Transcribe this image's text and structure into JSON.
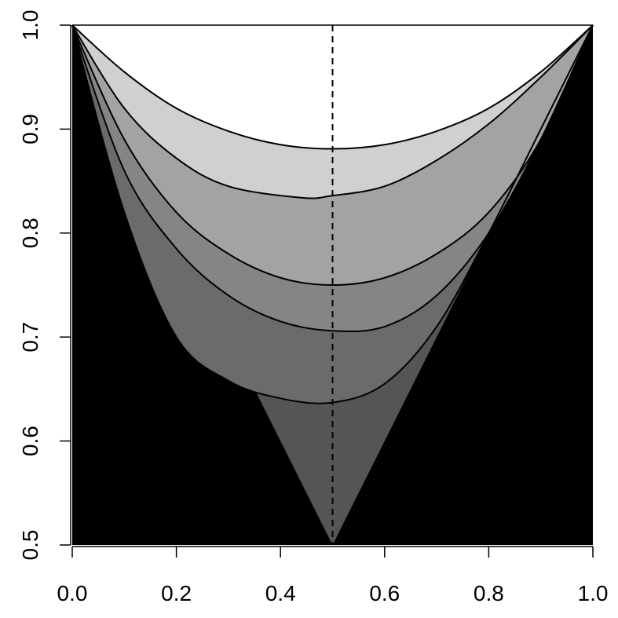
{
  "chart_data": {
    "type": "area",
    "title": "",
    "xlabel": "",
    "ylabel": "",
    "xlim": [
      0,
      1
    ],
    "ylim": [
      0.5,
      1.0
    ],
    "x_ticks": [
      "0.0",
      "0.2",
      "0.4",
      "0.6",
      "0.8",
      "1.0"
    ],
    "y_ticks": [
      "0.5",
      "0.6",
      "0.7",
      "0.8",
      "0.9",
      "1.0"
    ],
    "grid": false,
    "reference_line": {
      "x": 0.5,
      "style": "dashed"
    },
    "background_fill": "#000000",
    "boundaries": [
      {
        "description": "lower bound V",
        "points": [
          [
            0.0,
            1.0
          ],
          [
            0.5,
            0.5
          ],
          [
            1.0,
            1.0
          ]
        ]
      },
      {
        "minimum": [
          0.5,
          0.637
        ],
        "points": [
          [
            0.0,
            1.0
          ],
          [
            0.1,
            0.82
          ],
          [
            0.2,
            0.7
          ],
          [
            0.3,
            0.658
          ],
          [
            0.4,
            0.641
          ],
          [
            0.5,
            0.637
          ],
          [
            0.6,
            0.655
          ],
          [
            0.7,
            0.71
          ],
          [
            0.8,
            0.8
          ],
          [
            0.9,
            0.9
          ],
          [
            1.0,
            1.0
          ]
        ]
      },
      {
        "minimum": [
          0.52,
          0.705
        ],
        "points": [
          [
            0.0,
            1.0
          ],
          [
            0.1,
            0.86
          ],
          [
            0.2,
            0.785
          ],
          [
            0.3,
            0.74
          ],
          [
            0.4,
            0.715
          ],
          [
            0.5,
            0.706
          ],
          [
            0.6,
            0.71
          ],
          [
            0.7,
            0.74
          ],
          [
            0.8,
            0.8
          ],
          [
            0.9,
            0.89
          ],
          [
            1.0,
            1.0
          ]
        ]
      },
      {
        "minimum": [
          0.5,
          0.75
        ],
        "points": [
          [
            0.0,
            1.0
          ],
          [
            0.1,
            0.89
          ],
          [
            0.2,
            0.82
          ],
          [
            0.3,
            0.78
          ],
          [
            0.4,
            0.757
          ],
          [
            0.5,
            0.75
          ],
          [
            0.6,
            0.757
          ],
          [
            0.7,
            0.78
          ],
          [
            0.8,
            0.82
          ],
          [
            0.9,
            0.89
          ],
          [
            1.0,
            1.0
          ]
        ]
      },
      {
        "minimum": [
          0.44,
          0.834
        ],
        "points": [
          [
            0.0,
            1.0
          ],
          [
            0.1,
            0.92
          ],
          [
            0.2,
            0.872
          ],
          [
            0.3,
            0.845
          ],
          [
            0.44,
            0.834
          ],
          [
            0.5,
            0.836
          ],
          [
            0.6,
            0.845
          ],
          [
            0.7,
            0.87
          ],
          [
            0.8,
            0.905
          ],
          [
            0.9,
            0.95
          ],
          [
            1.0,
            1.0
          ]
        ]
      },
      {
        "minimum": [
          0.5,
          0.881
        ],
        "points": [
          [
            0.0,
            1.0
          ],
          [
            0.1,
            0.955
          ],
          [
            0.2,
            0.92
          ],
          [
            0.3,
            0.898
          ],
          [
            0.4,
            0.885
          ],
          [
            0.5,
            0.881
          ],
          [
            0.6,
            0.885
          ],
          [
            0.7,
            0.898
          ],
          [
            0.8,
            0.92
          ],
          [
            0.9,
            0.955
          ],
          [
            1.0,
            1.0
          ]
        ]
      }
    ],
    "band_fills": [
      "#555555",
      "#6b6b6b",
      "#858585",
      "#a3a3a3",
      "#d0d0d0",
      "#ffffff"
    ]
  }
}
